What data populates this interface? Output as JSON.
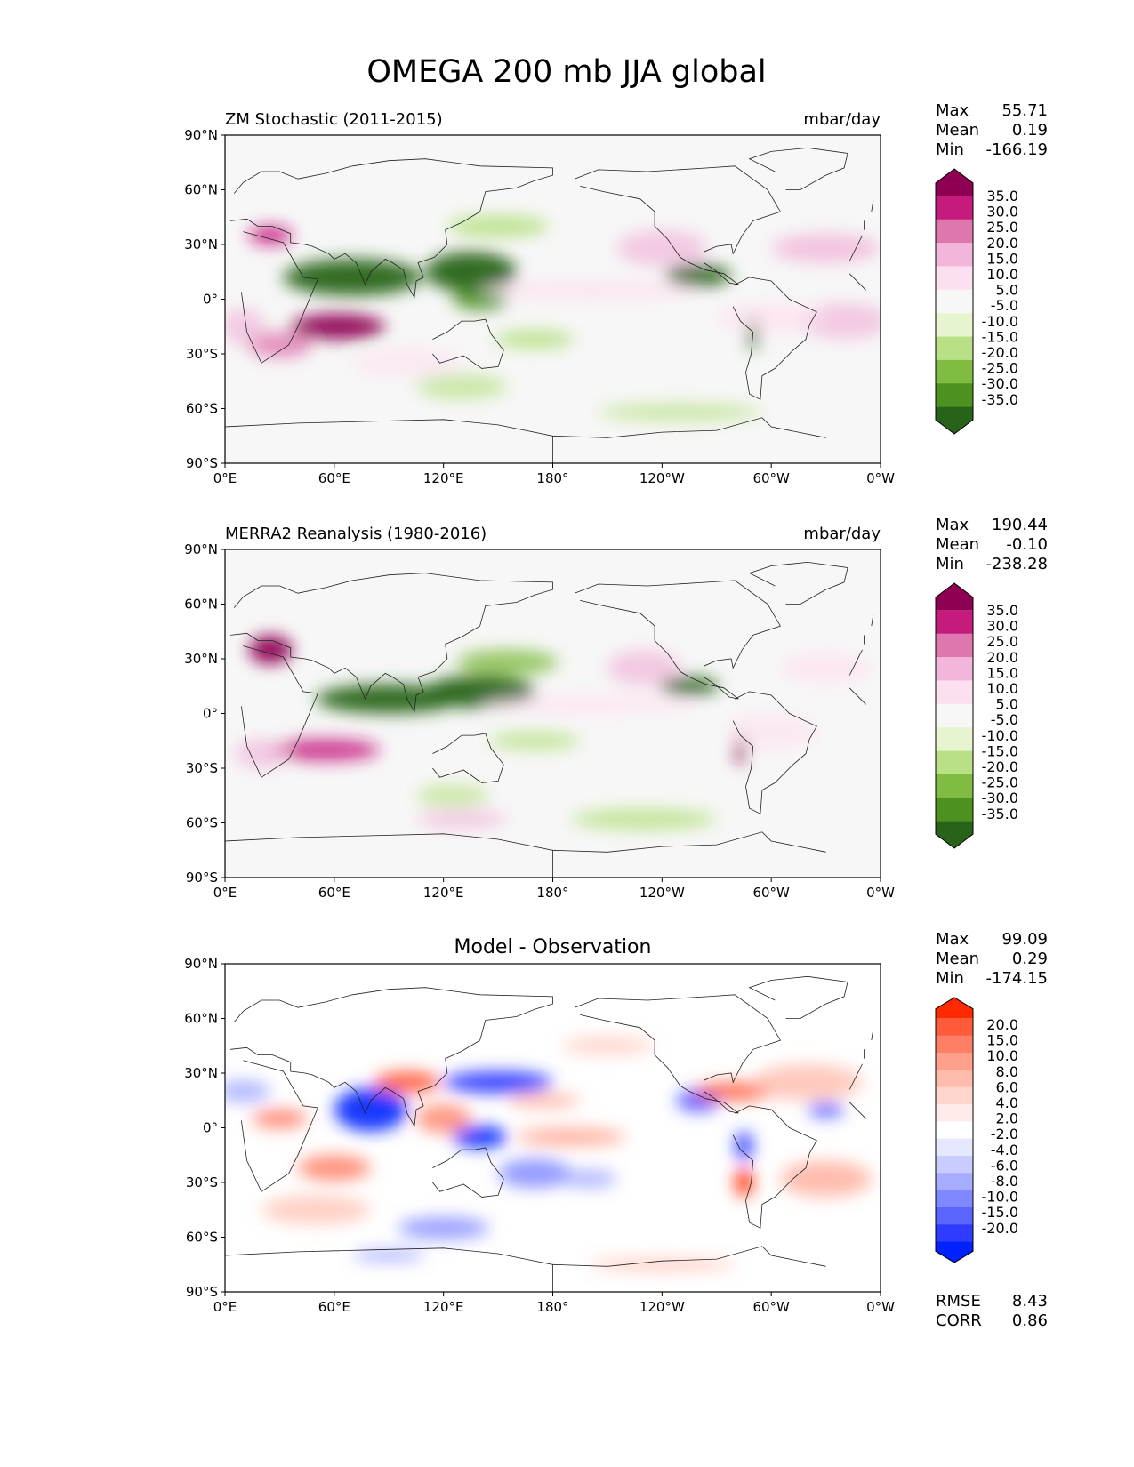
{
  "figure": {
    "title": "OMEGA 200 mb JJA global"
  },
  "panels": [
    {
      "id": "model",
      "left_title": "ZM Stochastic (2011-2015)",
      "center_title": "",
      "units": "mbar/day",
      "stats": [
        {
          "label": "Max",
          "value": "55.71"
        },
        {
          "label": "Mean",
          "value": "0.19"
        },
        {
          "label": "Min",
          "value": "-166.19"
        }
      ],
      "colorbar": [
        "35.0",
        "30.0",
        "25.0",
        "20.0",
        "15.0",
        "10.0",
        "5.0",
        "-5.0",
        "-10.0",
        "-15.0",
        "-20.0",
        "-25.0",
        "-30.0",
        "-35.0"
      ],
      "colorbar_colors": [
        "#8e0152",
        "#c51b7d",
        "#de77ae",
        "#f1b6da",
        "#fde0ef",
        "#f7f7f7",
        "#e6f5d0",
        "#b8e186",
        "#7fbc41",
        "#4d9221",
        "#276419"
      ],
      "footer": []
    },
    {
      "id": "obs",
      "left_title": "MERRA2 Reanalysis (1980-2016)",
      "center_title": "",
      "units": "mbar/day",
      "stats": [
        {
          "label": "Max",
          "value": "190.44"
        },
        {
          "label": "Mean",
          "value": "-0.10"
        },
        {
          "label": "Min",
          "value": "-238.28"
        }
      ],
      "colorbar": [
        "35.0",
        "30.0",
        "25.0",
        "20.0",
        "15.0",
        "10.0",
        "5.0",
        "-5.0",
        "-10.0",
        "-15.0",
        "-20.0",
        "-25.0",
        "-30.0",
        "-35.0"
      ],
      "colorbar_colors": [
        "#8e0152",
        "#c51b7d",
        "#de77ae",
        "#f1b6da",
        "#fde0ef",
        "#f7f7f7",
        "#e6f5d0",
        "#b8e186",
        "#7fbc41",
        "#4d9221",
        "#276419"
      ],
      "footer": []
    },
    {
      "id": "diff",
      "left_title": "",
      "center_title": "Model - Observation",
      "units": "",
      "stats": [
        {
          "label": "Max",
          "value": "99.09"
        },
        {
          "label": "Mean",
          "value": "0.29"
        },
        {
          "label": "Min",
          "value": "-174.15"
        }
      ],
      "colorbar": [
        "20.0",
        "15.0",
        "10.0",
        "8.0",
        "6.0",
        "4.0",
        "2.0",
        "-2.0",
        "-4.0",
        "-6.0",
        "-8.0",
        "-10.0",
        "-15.0",
        "-20.0"
      ],
      "colorbar_colors": [
        "#ff2a00",
        "#ff5a3a",
        "#ff7f66",
        "#ffa08c",
        "#ffbcad",
        "#ffd5cc",
        "#ffecea",
        "#ffffff",
        "#e6e8ff",
        "#c8ccff",
        "#a6acff",
        "#8088ff",
        "#5a64ff",
        "#2f3cff",
        "#0022ff"
      ],
      "footer": [
        {
          "label": "RMSE",
          "value": "8.43"
        },
        {
          "label": "CORR",
          "value": "0.86"
        }
      ]
    }
  ],
  "axes": {
    "lat_ticks": [
      "90°N",
      "60°N",
      "30°N",
      "0°",
      "30°S",
      "60°S",
      "90°S"
    ],
    "lon_ticks": [
      "0°E",
      "60°E",
      "120°E",
      "180°",
      "120°W",
      "60°W",
      "0°W"
    ]
  },
  "icons": {
    "map": "world-map-icon"
  }
}
